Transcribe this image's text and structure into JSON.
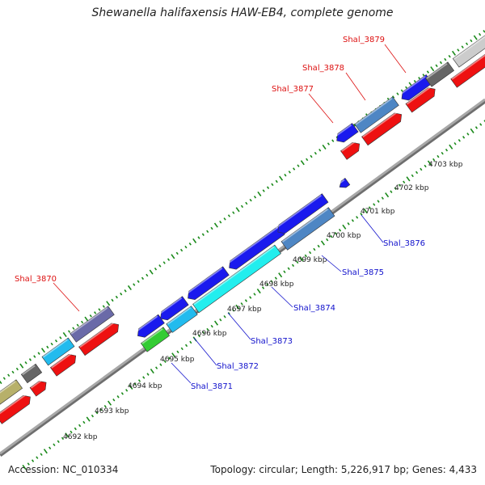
{
  "title": "Shewanella halifaxensis HAW-EB4, complete genome",
  "footer": {
    "accession": "Accession: NC_010334",
    "summary": "Topology: circular; Length: 5,226,917 bp; Genes: 4,433"
  },
  "colors": {
    "forward_label": "#dd1111",
    "reverse_label": "#1111cc",
    "tick": "#1a8a1a",
    "backbone": "#8a8a8a"
  },
  "scale_ticks": [
    "4692 kbp",
    "4693 kbp",
    "4694 kbp",
    "4695 kbp",
    "4696 kbp",
    "4697 kbp",
    "4698 kbp",
    "4699 kbp",
    "4700 kbp",
    "4701 kbp",
    "4702 kbp",
    "4703 kbp"
  ],
  "forward_labels": [
    "Shal_3870",
    "Shal_3877",
    "Shal_3878",
    "Shal_3879"
  ],
  "reverse_labels": [
    "Shal_3871",
    "Shal_3872",
    "Shal_3873",
    "Shal_3874",
    "Shal_3875",
    "Shal_3876"
  ]
}
